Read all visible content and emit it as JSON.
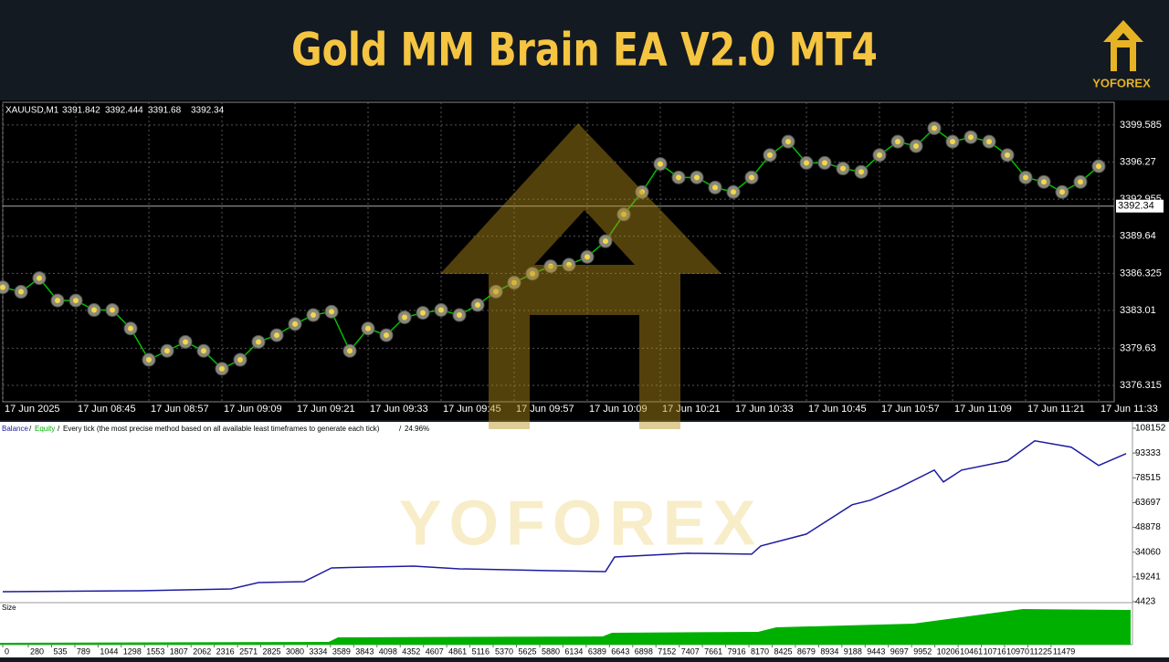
{
  "header": {
    "title": "Gold MM Brain EA V2.0 MT4",
    "brand": "YOFOREX"
  },
  "chart_data": [
    {
      "type": "price",
      "symbol": "XAUUSD,M1",
      "ohlc": [
        3391.842,
        3392.444,
        3391.68,
        3392.34
      ],
      "color": "#00c000",
      "marker_color": "#f2d64b",
      "values": [
        3385.08,
        3384.68,
        3385.9,
        3383.9,
        3383.9,
        3383.05,
        3383.05,
        3381.4,
        3378.6,
        3379.4,
        3380.2,
        3379.4,
        3377.8,
        3378.6,
        3380.2,
        3380.8,
        3381.8,
        3382.6,
        3382.9,
        3379.4,
        3381.4,
        3380.8,
        3382.4,
        3382.8,
        3383.05,
        3382.6,
        3383.5,
        3384.7,
        3385.5,
        3386.3,
        3386.96,
        3387.1,
        3387.8,
        3389.2,
        3391.6,
        3393.6,
        3396.1,
        3394.9,
        3394.9,
        3394.0,
        3393.6,
        3394.9,
        3396.9,
        3398.1,
        3396.2,
        3396.2,
        3395.7,
        3395.4,
        3396.9,
        3398.1,
        3397.7,
        3399.3,
        3398.1,
        3398.5,
        3398.1,
        3396.9,
        3394.9,
        3394.5,
        3393.6,
        3394.5,
        3395.9
      ],
      "xlim": [
        0,
        60.85
      ],
      "xticks": [
        {
          "value": 0,
          "label": "17 Jun 2025"
        },
        {
          "value": 4,
          "label": "17 Jun 08:45"
        },
        {
          "value": 8,
          "label": "17 Jun 08:57"
        },
        {
          "value": 12,
          "label": "17 Jun 09:09"
        },
        {
          "value": 16,
          "label": "17 Jun 09:21"
        },
        {
          "value": 20,
          "label": "17 Jun 09:33"
        },
        {
          "value": 24,
          "label": "17 Jun 09:45"
        },
        {
          "value": 28,
          "label": "17 Jun 09:57"
        },
        {
          "value": 32,
          "label": "17 Jun 10:09"
        },
        {
          "value": 36,
          "label": "17 Jun 10:21"
        },
        {
          "value": 40,
          "label": "17 Jun 10:33"
        },
        {
          "value": 44,
          "label": "17 Jun 10:45"
        },
        {
          "value": 48,
          "label": "17 Jun 10:57"
        },
        {
          "value": 52,
          "label": "17 Jun 11:09"
        },
        {
          "value": 56,
          "label": "17 Jun 11:21"
        },
        {
          "value": 60,
          "label": "17 Jun 11:33"
        }
      ],
      "ylim": [
        3374.85,
        3401.62
      ],
      "yticks": [
        3376.315,
        3379.63,
        3383.01,
        3386.325,
        3389.64,
        3392.955,
        3396.27,
        3399.585
      ],
      "grid": true
    },
    {
      "type": "balance",
      "series": [
        {
          "name": "Balance",
          "color": "#1c1ca0",
          "x": [
            0,
            1500,
            2500,
            2800,
            3300,
            3600,
            4500,
            5000,
            6000,
            6600,
            6700,
            7500,
            8200,
            8300,
            8800,
            9300,
            9500,
            9800,
            10200,
            10300,
            10500,
            11000,
            11300,
            11700,
            12000,
            12300
          ],
          "values": [
            10440,
            11000,
            12080,
            15900,
            16450,
            24650,
            25740,
            24100,
            23010,
            22470,
            31200,
            33400,
            32860,
            37780,
            44890,
            62390,
            65120,
            72230,
            83160,
            76050,
            83160,
            88630,
            100660,
            96830,
            85900,
            93000
          ]
        }
      ],
      "equity_name": "Equity",
      "equity_color": "#00b000",
      "mode_text": "Every tick (the most precise method based on all available least timeframes to generate each tick)",
      "quality": "24.96%",
      "xlim": [
        -30,
        12370
      ],
      "xticks": [
        0,
        280,
        535,
        789,
        1044,
        1298,
        1553,
        1807,
        2062,
        2316,
        2571,
        2825,
        3080,
        3334,
        3589,
        3843,
        4098,
        4352,
        4607,
        4861,
        5116,
        5370,
        5625,
        5880,
        6134,
        6389,
        6643,
        6898,
        7152,
        7407,
        7661,
        7916,
        8170,
        8425,
        8679,
        8934,
        9188,
        9443,
        9697,
        9952,
        10206,
        10461,
        10716,
        10970,
        11225,
        11479
      ],
      "ylim": [
        3876,
        111980
      ],
      "yticks": [
        4423,
        19241,
        34060,
        48878,
        63697,
        78515,
        93333,
        108152
      ]
    },
    {
      "type": "size",
      "title": "Size",
      "color": "#00b000"
    }
  ]
}
